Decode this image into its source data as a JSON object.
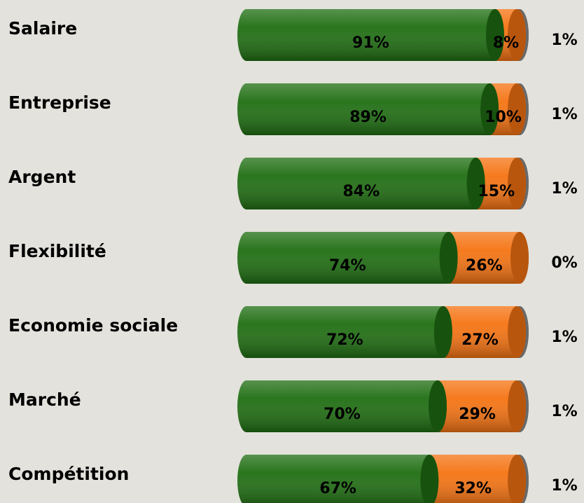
{
  "chart_data": {
    "type": "bar",
    "orientation": "horizontal",
    "stacked": true,
    "categories": [
      "Salaire",
      "Entreprise",
      "Argent",
      "Flexibilité",
      "Economie sociale",
      "Marché",
      "Compétition"
    ],
    "series": [
      {
        "color": "#1f6e12",
        "values": [
          91,
          89,
          84,
          74,
          72,
          70,
          67
        ],
        "value_labels": [
          "91%",
          "89%",
          "84%",
          "74%",
          "72%",
          "70%",
          "67%"
        ]
      },
      {
        "color": "#f57312",
        "values": [
          8,
          10,
          15,
          26,
          27,
          29,
          32
        ],
        "value_labels": [
          "8%",
          "10%",
          "15%",
          "26%",
          "27%",
          "29%",
          "32%"
        ]
      },
      {
        "color": "#8c8c8c",
        "values": [
          1,
          1,
          1,
          0,
          1,
          1,
          1
        ],
        "value_labels": [
          "1%",
          "1%",
          "1%",
          "0%",
          "1%",
          "1%",
          "1%"
        ]
      }
    ]
  }
}
